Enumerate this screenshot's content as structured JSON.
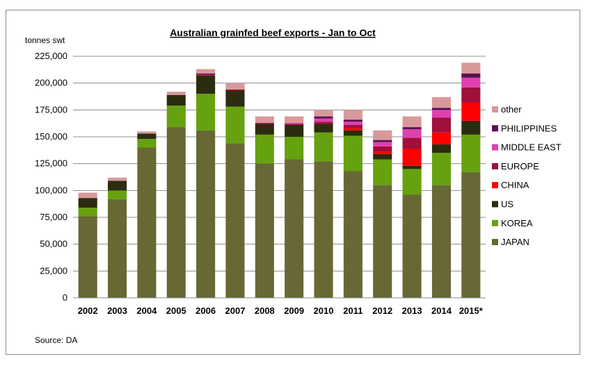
{
  "chart_data": {
    "type": "bar",
    "stacked": true,
    "title": "Australian  grainfed  beef  exports - Jan to Oct",
    "ylabel": "tonnes swt",
    "source": "Source: DA",
    "ylim": [
      0,
      225000
    ],
    "yticks": [
      "0",
      "25,000",
      "50,000",
      "75,000",
      "100,000",
      "125,000",
      "150,000",
      "175,000",
      "200,000",
      "225,000"
    ],
    "ytick_values": [
      0,
      25000,
      50000,
      75000,
      100000,
      125000,
      150000,
      175000,
      200000,
      225000
    ],
    "grid": true,
    "legend_position": "right",
    "categories": [
      "2002",
      "2003",
      "2004",
      "2005",
      "2006",
      "2007",
      "2008",
      "2009",
      "2010",
      "2011",
      "2012",
      "2013",
      "2014",
      "2015*"
    ],
    "series": [
      {
        "name": "JAPAN",
        "color": "#686834",
        "values": [
          76000,
          92000,
          140000,
          159000,
          156000,
          144000,
          125000,
          129000,
          127000,
          118000,
          105000,
          96000,
          105000,
          117000
        ]
      },
      {
        "name": "KOREA",
        "color": "#66a10f",
        "values": [
          8000,
          8000,
          8000,
          20000,
          34000,
          34000,
          27000,
          21000,
          27000,
          33000,
          24000,
          24000,
          30000,
          35000
        ]
      },
      {
        "name": "US",
        "color": "#2c2c10",
        "values": [
          9000,
          9000,
          5000,
          10000,
          17000,
          15000,
          10000,
          11000,
          8000,
          5000,
          5000,
          3000,
          8000,
          13000
        ]
      },
      {
        "name": "CHINA",
        "color": "#ff0000",
        "values": [
          0,
          0,
          0,
          0,
          0,
          0,
          0,
          0,
          0,
          2000,
          2000,
          16000,
          11000,
          17000
        ]
      },
      {
        "name": "EUROPE",
        "color": "#a0103a",
        "values": [
          0,
          0,
          0,
          0,
          1000,
          1000,
          1000,
          1000,
          2000,
          3000,
          5000,
          10000,
          14000,
          14000
        ]
      },
      {
        "name": "MIDDLE EAST",
        "color": "#e040b0",
        "values": [
          0,
          0,
          0,
          0,
          0,
          0,
          0,
          1000,
          3000,
          3000,
          4000,
          8000,
          7000,
          9000
        ]
      },
      {
        "name": "PHILIPPINES",
        "color": "#5c0f52",
        "values": [
          0,
          0,
          0,
          0,
          1000,
          0,
          0,
          0,
          2000,
          2000,
          2000,
          2000,
          2000,
          4000
        ]
      },
      {
        "name": "other",
        "color": "#d8999b",
        "values": [
          5000,
          3000,
          2000,
          3000,
          4000,
          6000,
          6000,
          6000,
          6000,
          9000,
          9000,
          10000,
          10000,
          10000
        ]
      }
    ],
    "legend_order": [
      "other",
      "PHILIPPINES",
      "MIDDLE EAST",
      "EUROPE",
      "CHINA",
      "US",
      "KOREA",
      "JAPAN"
    ]
  }
}
